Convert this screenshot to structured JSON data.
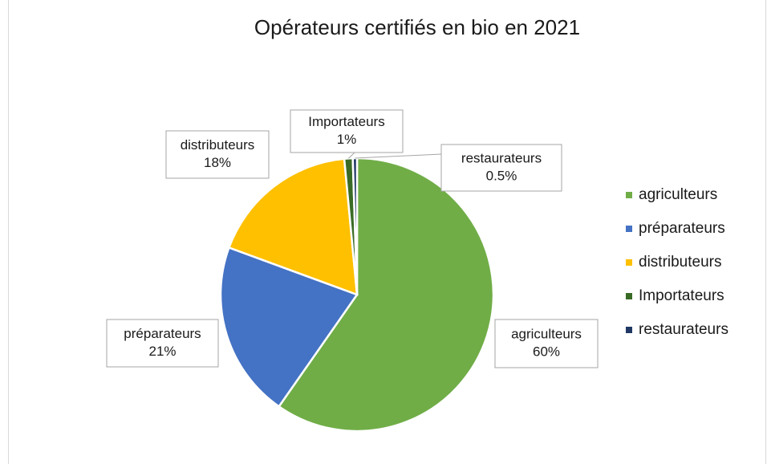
{
  "chart_data": {
    "type": "pie",
    "title": "Opérateurs certifiés en bio en 2021",
    "categories": [
      "agriculteurs",
      "préparateurs",
      "distributeurs",
      "Importateurs",
      "restaurateurs"
    ],
    "values": [
      60,
      21,
      18,
      1,
      0.5
    ],
    "value_labels": [
      "60%",
      "21%",
      "18%",
      "1%",
      "0.5%"
    ],
    "colors": [
      "#70ad47",
      "#4472c4",
      "#ffc000",
      "#3a6b26",
      "#203864"
    ],
    "legend": "right"
  }
}
